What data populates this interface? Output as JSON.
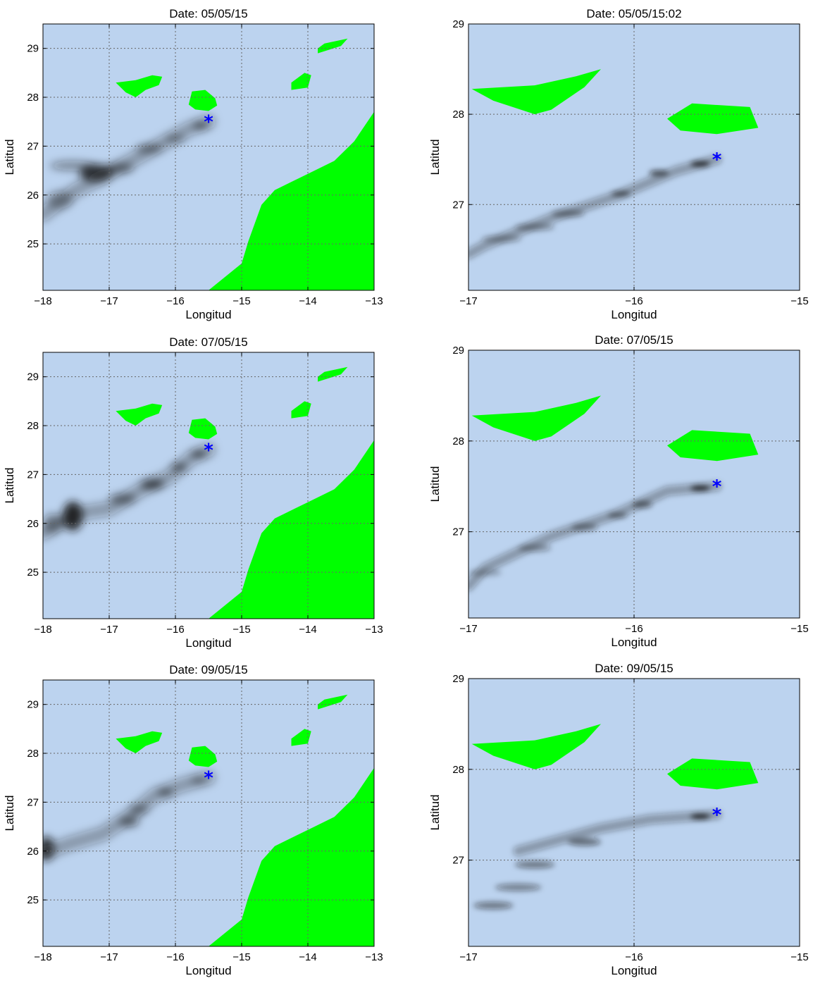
{
  "figure": {
    "colors": {
      "sea": "#bcd3ef",
      "land": "#00ff00",
      "plume": "#141414",
      "marker": "#0000ff",
      "grid": "#666666"
    },
    "marker_glyph": "*",
    "source_point": {
      "lon": -15.5,
      "lat": 27.5
    },
    "maps": [
      {
        "title": "Date: 05/05/15",
        "xlabel": "Longitud",
        "ylabel": "Latitud",
        "xlim": [
          -18,
          -13
        ],
        "ylim": [
          24.05,
          29.5
        ],
        "xticks": [
          -18,
          -17,
          -16,
          -15,
          -14,
          -13
        ],
        "yticks": [
          25,
          26,
          27,
          28,
          29
        ],
        "xtick_labels": [
          "−18",
          "−17",
          "−16",
          "−15",
          "−14",
          "−13"
        ],
        "ytick_labels": [
          "25",
          "26",
          "27",
          "28",
          "29"
        ],
        "plume_path": [
          [
            -15.5,
            27.5
          ],
          [
            -15.8,
            27.35
          ],
          [
            -16.2,
            27.05
          ],
          [
            -16.6,
            26.75
          ],
          [
            -17.0,
            26.45
          ],
          [
            -17.5,
            26.1
          ],
          [
            -18.0,
            25.6
          ]
        ],
        "plume_blobs": [
          [
            -15.62,
            27.42,
            0.12,
            0.05,
            0.8
          ],
          [
            -16.0,
            27.15,
            0.15,
            0.06,
            0.5
          ],
          [
            -16.4,
            26.95,
            0.2,
            0.08,
            0.5
          ],
          [
            -16.85,
            26.55,
            0.22,
            0.1,
            0.5
          ],
          [
            -17.2,
            26.45,
            0.25,
            0.18,
            0.8
          ],
          [
            -17.55,
            26.6,
            0.35,
            0.1,
            0.4
          ],
          [
            -17.75,
            25.9,
            0.2,
            0.18,
            0.35
          ]
        ]
      },
      {
        "title": "Date: 05/05/15:02",
        "xlabel": "Longitud",
        "ylabel": "Latitud",
        "xlim": [
          -17,
          -15
        ],
        "ylim": [
          26.05,
          29
        ],
        "xticks": [
          -17,
          -16,
          -15
        ],
        "yticks": [
          27,
          28,
          29
        ],
        "xtick_labels": [
          "−17",
          "−16",
          "−15"
        ],
        "ytick_labels": [
          "27",
          "28",
          "29"
        ],
        "plume_path": [
          [
            -15.5,
            27.5
          ],
          [
            -15.75,
            27.37
          ],
          [
            -16.1,
            27.1
          ],
          [
            -16.5,
            26.85
          ],
          [
            -16.9,
            26.55
          ],
          [
            -17.0,
            26.45
          ]
        ],
        "plume_blobs": [
          [
            -15.6,
            27.45,
            0.06,
            0.03,
            0.85
          ],
          [
            -15.85,
            27.35,
            0.06,
            0.03,
            0.7
          ],
          [
            -16.08,
            27.12,
            0.06,
            0.03,
            0.6
          ],
          [
            -16.4,
            26.9,
            0.1,
            0.04,
            0.4
          ],
          [
            -16.6,
            26.75,
            0.12,
            0.04,
            0.35
          ],
          [
            -16.8,
            26.62,
            0.12,
            0.04,
            0.3
          ]
        ]
      },
      {
        "title": "Date: 07/05/15",
        "xlabel": "Longitud",
        "ylabel": "Latitud",
        "xlim": [
          -18,
          -13
        ],
        "ylim": [
          24.05,
          29.5
        ],
        "xticks": [
          -18,
          -17,
          -16,
          -15,
          -14,
          -13
        ],
        "yticks": [
          25,
          26,
          27,
          28,
          29
        ],
        "xtick_labels": [
          "−18",
          "−17",
          "−16",
          "−15",
          "−14",
          "−13"
        ],
        "ytick_labels": [
          "25",
          "26",
          "27",
          "28",
          "29"
        ],
        "plume_path": [
          [
            -15.5,
            27.5
          ],
          [
            -15.75,
            27.35
          ],
          [
            -16.1,
            26.95
          ],
          [
            -16.5,
            26.7
          ],
          [
            -17.0,
            26.3
          ],
          [
            -17.5,
            26.2
          ],
          [
            -18.0,
            25.8
          ]
        ],
        "plume_blobs": [
          [
            -15.65,
            27.42,
            0.12,
            0.05,
            0.9
          ],
          [
            -15.95,
            27.15,
            0.12,
            0.08,
            0.6
          ],
          [
            -16.35,
            26.8,
            0.18,
            0.1,
            0.7
          ],
          [
            -16.8,
            26.5,
            0.2,
            0.1,
            0.5
          ],
          [
            -17.55,
            26.15,
            0.15,
            0.3,
            0.9
          ],
          [
            -17.85,
            26.0,
            0.15,
            0.2,
            0.4
          ]
        ]
      },
      {
        "title": "Date: 07/05/15",
        "xlabel": "Longitud",
        "ylabel": "Latitud",
        "xlim": [
          -17,
          -15
        ],
        "ylim": [
          26.05,
          29
        ],
        "xticks": [
          -17,
          -16,
          -15
        ],
        "yticks": [
          27,
          28,
          29
        ],
        "xtick_labels": [
          "−17",
          "−16",
          "−15"
        ],
        "ytick_labels": [
          "27",
          "28",
          "29"
        ],
        "plume_path": [
          [
            -15.5,
            27.5
          ],
          [
            -15.8,
            27.45
          ],
          [
            -16.1,
            27.2
          ],
          [
            -16.5,
            26.95
          ],
          [
            -16.9,
            26.6
          ],
          [
            -17.0,
            26.4
          ]
        ],
        "plume_blobs": [
          [
            -15.6,
            27.48,
            0.06,
            0.03,
            0.85
          ],
          [
            -15.95,
            27.3,
            0.06,
            0.04,
            0.5
          ],
          [
            -16.1,
            27.18,
            0.06,
            0.03,
            0.5
          ],
          [
            -16.3,
            27.05,
            0.08,
            0.04,
            0.4
          ],
          [
            -16.6,
            26.82,
            0.1,
            0.04,
            0.35
          ],
          [
            -16.9,
            26.55,
            0.1,
            0.04,
            0.25
          ]
        ]
      },
      {
        "title": "Date: 09/05/15",
        "xlabel": "Longitud",
        "ylabel": "Latitud",
        "xlim": [
          -18,
          -13
        ],
        "ylim": [
          24.05,
          29.5
        ],
        "xticks": [
          -18,
          -17,
          -16,
          -15,
          -14,
          -13
        ],
        "yticks": [
          25,
          26,
          27,
          28,
          29
        ],
        "xtick_labels": [
          "−18",
          "−17",
          "−16",
          "−15",
          "−14",
          "−13"
        ],
        "ytick_labels": [
          "25",
          "26",
          "27",
          "28",
          "29"
        ],
        "plume_path": [
          [
            -15.5,
            27.5
          ],
          [
            -15.9,
            27.35
          ],
          [
            -16.3,
            27.15
          ],
          [
            -16.7,
            26.7
          ],
          [
            -17.1,
            26.35
          ],
          [
            -17.6,
            26.15
          ],
          [
            -18.0,
            25.95
          ]
        ],
        "plume_blobs": [
          [
            -15.65,
            27.45,
            0.12,
            0.05,
            0.6
          ],
          [
            -16.15,
            27.2,
            0.12,
            0.06,
            0.7
          ],
          [
            -16.55,
            26.85,
            0.15,
            0.08,
            0.5
          ],
          [
            -16.7,
            26.6,
            0.15,
            0.1,
            0.55
          ],
          [
            -17.95,
            26.05,
            0.12,
            0.25,
            0.8
          ]
        ]
      },
      {
        "title": "Date: 09/05/15",
        "xlabel": "Longitud",
        "ylabel": "Latitud",
        "xlim": [
          -17,
          -15
        ],
        "ylim": [
          26.05,
          29
        ],
        "xticks": [
          -17,
          -16,
          -15
        ],
        "yticks": [
          27,
          28,
          29
        ],
        "xtick_labels": [
          "−17",
          "−16",
          "−15"
        ],
        "ytick_labels": [
          "27",
          "28",
          "29"
        ],
        "plume_path": [
          [
            -15.5,
            27.5
          ],
          [
            -15.9,
            27.45
          ],
          [
            -16.2,
            27.35
          ],
          [
            -16.5,
            27.2
          ],
          [
            -16.7,
            27.1
          ]
        ],
        "plume_blobs": [
          [
            -15.6,
            27.48,
            0.06,
            0.03,
            0.85
          ],
          [
            -16.3,
            27.2,
            0.1,
            0.04,
            0.55
          ],
          [
            -16.6,
            26.95,
            0.12,
            0.04,
            0.5
          ],
          [
            -16.7,
            26.7,
            0.14,
            0.04,
            0.45
          ],
          [
            -16.85,
            26.5,
            0.12,
            0.04,
            0.5
          ]
        ]
      }
    ]
  }
}
